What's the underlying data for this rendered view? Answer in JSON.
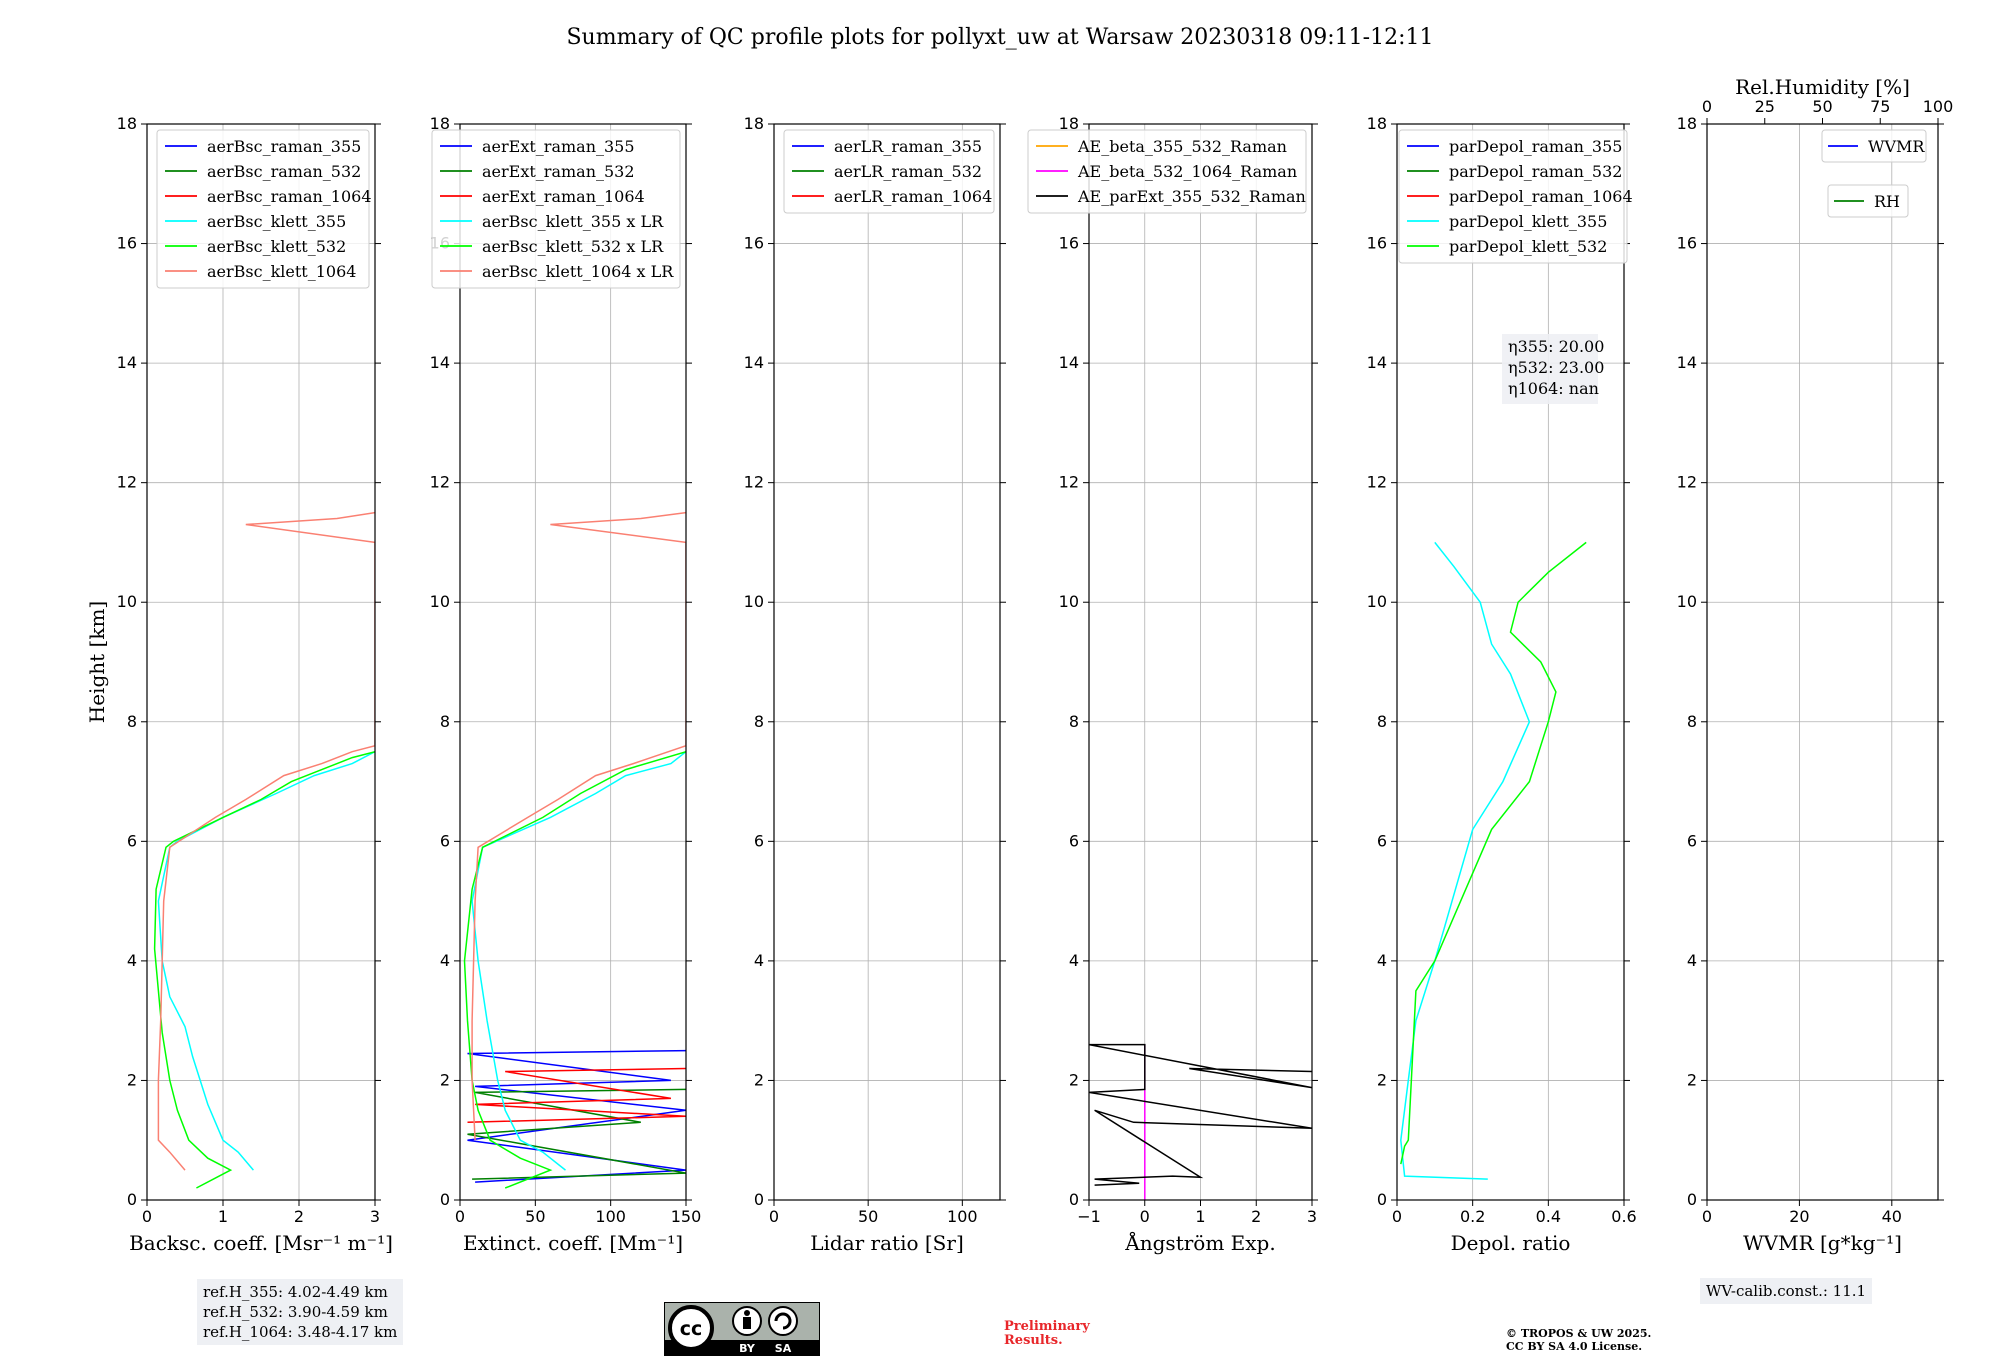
{
  "title": "Summary of QC profile plots for pollyxt_uw at Warsaw 20230318 09:11-12:11",
  "ref_heights": [
    "ref.H_355: 4.02-4.49 km",
    "ref.H_532: 3.90-4.59 km",
    "ref.H_1064: 3.48-4.17 km"
  ],
  "wv_calib": "WV-calib.const.: 11.1",
  "preliminary": [
    "Preliminary",
    "Results."
  ],
  "copyright": [
    "© TROPOS & UW 2025.",
    "CC BY SA 4.0 License."
  ],
  "license_badge": {
    "labels": [
      "BY",
      "SA"
    ],
    "icon": "cc-license-icon"
  },
  "colors": {
    "blue": "#0000ff",
    "green": "#008000",
    "red": "#ff0000",
    "cyan": "#00ffff",
    "lime": "#00ff00",
    "salmon": "#fa8072",
    "orange": "#ffa500",
    "magenta": "#ff00ff",
    "black": "#000000"
  },
  "chart_data": [
    {
      "type": "line",
      "ylabel": "Height [km]",
      "ylim": [
        0,
        18
      ],
      "yticks": [
        0,
        2,
        4,
        6,
        8,
        10,
        12,
        14,
        16,
        18
      ],
      "xlabel": "Backsc. coeff. [Msr⁻¹ m⁻¹]",
      "xlim": [
        0,
        3
      ],
      "xticks": [
        0,
        1,
        2,
        3
      ],
      "grid": true,
      "legend": "top-right",
      "series": [
        {
          "name": "aerBsc_raman_355",
          "color": "#0000ff",
          "x": [],
          "y": []
        },
        {
          "name": "aerBsc_raman_532",
          "color": "#008000",
          "x": [],
          "y": []
        },
        {
          "name": "aerBsc_raman_1064",
          "color": "#ff0000",
          "x": [],
          "y": []
        },
        {
          "name": "aerBsc_klett_355",
          "color": "#00ffff",
          "x": [
            1.4,
            1.2,
            1.0,
            0.9,
            0.8,
            0.7,
            0.6,
            0.5,
            0.3,
            0.2,
            0.15,
            0.3,
            0.4,
            1.0,
            1.7,
            2.2,
            2.7,
            3.0
          ],
          "y": [
            0.5,
            0.8,
            1.0,
            1.3,
            1.6,
            2.0,
            2.4,
            2.9,
            3.4,
            4.0,
            5.0,
            5.9,
            6.0,
            6.4,
            6.8,
            7.1,
            7.3,
            7.5
          ]
        },
        {
          "name": "aerBsc_klett_532",
          "color": "#00ff00",
          "x": [
            0.65,
            1.1,
            0.8,
            0.55,
            0.4,
            0.3,
            0.2,
            0.15,
            0.1,
            0.12,
            0.25,
            0.35,
            1.0,
            1.5,
            1.9,
            2.3,
            2.7,
            3.0
          ],
          "y": [
            0.2,
            0.5,
            0.7,
            1.0,
            1.5,
            2.0,
            2.8,
            3.5,
            4.2,
            5.2,
            5.9,
            6.0,
            6.4,
            6.7,
            7.0,
            7.2,
            7.4,
            7.5
          ]
        },
        {
          "name": "aerBsc_klett_1064",
          "color": "#fa8072",
          "x": [
            0.5,
            0.3,
            0.15,
            0.15,
            0.18,
            0.2,
            0.22,
            0.3,
            0.9,
            1.3,
            1.8,
            2.3,
            2.7,
            3.0,
            3.0,
            1.3,
            2.5,
            3.0
          ],
          "y": [
            0.5,
            0.8,
            1.0,
            2.0,
            3.0,
            4.0,
            5.0,
            5.9,
            6.4,
            6.7,
            7.1,
            7.3,
            7.5,
            7.6,
            11.0,
            11.3,
            11.4,
            11.5
          ]
        }
      ]
    },
    {
      "type": "line",
      "ylim": [
        0,
        18
      ],
      "yticks": [
        0,
        2,
        4,
        6,
        8,
        10,
        12,
        14,
        16,
        18
      ],
      "xlabel": "Extinct. coeff. [Mm⁻¹]",
      "xlim": [
        0,
        150
      ],
      "xticks": [
        0,
        50,
        100,
        150
      ],
      "grid": true,
      "legend": "top-right",
      "series": [
        {
          "name": "aerExt_raman_355",
          "color": "#0000ff",
          "x": [
            10,
            150,
            5,
            150,
            10,
            140,
            5,
            150
          ],
          "y": [
            0.3,
            0.5,
            1.0,
            1.5,
            1.9,
            2.0,
            2.45,
            2.5
          ]
        },
        {
          "name": "aerExt_raman_532",
          "color": "#008000",
          "x": [
            8,
            150,
            5,
            120,
            10,
            150
          ],
          "y": [
            0.35,
            0.45,
            1.1,
            1.3,
            1.8,
            1.85
          ]
        },
        {
          "name": "aerExt_raman_1064",
          "color": "#ff0000",
          "x": [
            5,
            150,
            10,
            140,
            30,
            150
          ],
          "y": [
            1.3,
            1.4,
            1.6,
            1.7,
            2.15,
            2.2
          ]
        },
        {
          "name": "aerBsc_klett_355 x LR",
          "color": "#00ffff",
          "x": [
            70,
            55,
            40,
            30,
            25,
            18,
            12,
            8,
            15,
            60,
            90,
            110,
            140,
            150
          ],
          "y": [
            0.5,
            0.8,
            1.0,
            1.5,
            2.0,
            3.0,
            4.0,
            5.0,
            5.9,
            6.4,
            6.8,
            7.1,
            7.3,
            7.5
          ]
        },
        {
          "name": "aerBsc_klett_532 x LR",
          "color": "#00ff00",
          "x": [
            30,
            60,
            40,
            20,
            12,
            8,
            5,
            3,
            8,
            15,
            55,
            80,
            110,
            150
          ],
          "y": [
            0.2,
            0.5,
            0.7,
            1.0,
            1.5,
            2.0,
            3.0,
            4.0,
            5.2,
            5.9,
            6.4,
            6.8,
            7.2,
            7.5
          ]
        },
        {
          "name": "aerBsc_klett_1064 x LR",
          "color": "#fa8072",
          "x": [
            10,
            8,
            8,
            9,
            10,
            12,
            45,
            65,
            90,
            115,
            150,
            150,
            60,
            120,
            150
          ],
          "y": [
            1.0,
            2.0,
            3.0,
            4.0,
            5.0,
            5.9,
            6.4,
            6.7,
            7.1,
            7.3,
            7.6,
            11.0,
            11.3,
            11.4,
            11.5
          ]
        }
      ]
    },
    {
      "type": "line",
      "ylim": [
        0,
        18
      ],
      "yticks": [
        0,
        2,
        4,
        6,
        8,
        10,
        12,
        14,
        16,
        18
      ],
      "xlabel": "Lidar ratio [Sr]",
      "xlim": [
        0,
        120
      ],
      "xticks": [
        0,
        50,
        100
      ],
      "grid": true,
      "legend": "top-right",
      "series": [
        {
          "name": "aerLR_raman_355",
          "color": "#0000ff",
          "x": [],
          "y": []
        },
        {
          "name": "aerLR_raman_532",
          "color": "#008000",
          "x": [],
          "y": []
        },
        {
          "name": "aerLR_raman_1064",
          "color": "#ff0000",
          "x": [],
          "y": []
        }
      ]
    },
    {
      "type": "line",
      "ylim": [
        0,
        18
      ],
      "yticks": [
        0,
        2,
        4,
        6,
        8,
        10,
        12,
        14,
        16,
        18
      ],
      "xlabel": "Ångström Exp.",
      "xlim": [
        -1,
        3
      ],
      "xticks": [
        -1,
        0,
        1,
        2,
        3
      ],
      "grid": true,
      "legend": "top-right",
      "series": [
        {
          "name": "AE_beta_355_532_Raman",
          "color": "#ffa500",
          "x": [],
          "y": []
        },
        {
          "name": "AE_beta_532_1064_Raman",
          "color": "#ff00ff",
          "x": [
            0,
            0
          ],
          "y": [
            0,
            2.6
          ]
        },
        {
          "name": "AE_parExt_355_532_Raman",
          "color": "#000000",
          "x": [
            -0.9,
            -0.1,
            -0.9,
            0.5,
            1.0,
            -0.9,
            -0.2,
            3.0,
            -1.0,
            0,
            0,
            -1.0,
            3.0,
            0.8,
            3.0
          ],
          "y": [
            0.25,
            0.28,
            0.35,
            0.4,
            0.38,
            1.5,
            1.3,
            1.2,
            1.8,
            1.85,
            2.6,
            2.6,
            1.88,
            2.2,
            2.15
          ]
        }
      ]
    },
    {
      "type": "line",
      "ylim": [
        0,
        18
      ],
      "yticks": [
        0,
        2,
        4,
        6,
        8,
        10,
        12,
        14,
        16,
        18
      ],
      "xlabel": "Depol. ratio",
      "xlim": [
        0,
        0.6
      ],
      "xticks": [
        0.0,
        0.2,
        0.4,
        0.6
      ],
      "grid": true,
      "legend": "top-left",
      "annotation": [
        "η355: 20.00",
        "η532: 23.00",
        "η1064: nan"
      ],
      "series": [
        {
          "name": "parDepol_raman_355",
          "color": "#0000ff",
          "x": [],
          "y": []
        },
        {
          "name": "parDepol_raman_532",
          "color": "#008000",
          "x": [],
          "y": []
        },
        {
          "name": "parDepol_raman_1064",
          "color": "#ff0000",
          "x": [],
          "y": []
        },
        {
          "name": "parDepol_klett_355",
          "color": "#00ffff",
          "x": [
            0.24,
            0.02,
            0.01,
            0.03,
            0.05,
            0.1,
            0.2,
            0.28,
            0.35,
            0.3,
            0.25,
            0.22,
            0.15,
            0.1
          ],
          "y": [
            0.35,
            0.4,
            1.0,
            2.0,
            3.0,
            4.0,
            6.2,
            7.0,
            8.0,
            8.8,
            9.3,
            10.0,
            10.6,
            11.0
          ]
        },
        {
          "name": "parDepol_klett_532",
          "color": "#00ff00",
          "x": [
            0.01,
            0.02,
            0.03,
            0.05,
            0.1,
            0.25,
            0.35,
            0.4,
            0.42,
            0.38,
            0.3,
            0.32,
            0.4,
            0.5
          ],
          "y": [
            0.6,
            0.9,
            1.0,
            3.5,
            4.0,
            6.2,
            7.0,
            8.0,
            8.5,
            9.0,
            9.5,
            10.0,
            10.5,
            11.0
          ]
        }
      ]
    },
    {
      "type": "line",
      "ylim": [
        0,
        18
      ],
      "yticks": [
        0,
        2,
        4,
        6,
        8,
        10,
        12,
        14,
        16,
        18
      ],
      "xlabel": "WVMR [g*kg⁻¹]",
      "xlim": [
        0,
        50
      ],
      "xticks": [
        0,
        20,
        40
      ],
      "grid": true,
      "x2label": "Rel.Humidity [%]",
      "x2lim": [
        0,
        100
      ],
      "x2ticks": [
        0,
        25,
        50,
        75,
        100
      ],
      "legend": "top-right",
      "series": [
        {
          "name": "WVMR",
          "color": "#0000ff",
          "x": [],
          "y": []
        },
        {
          "name": "RH",
          "color": "#008000",
          "x": [],
          "y": []
        }
      ]
    }
  ]
}
